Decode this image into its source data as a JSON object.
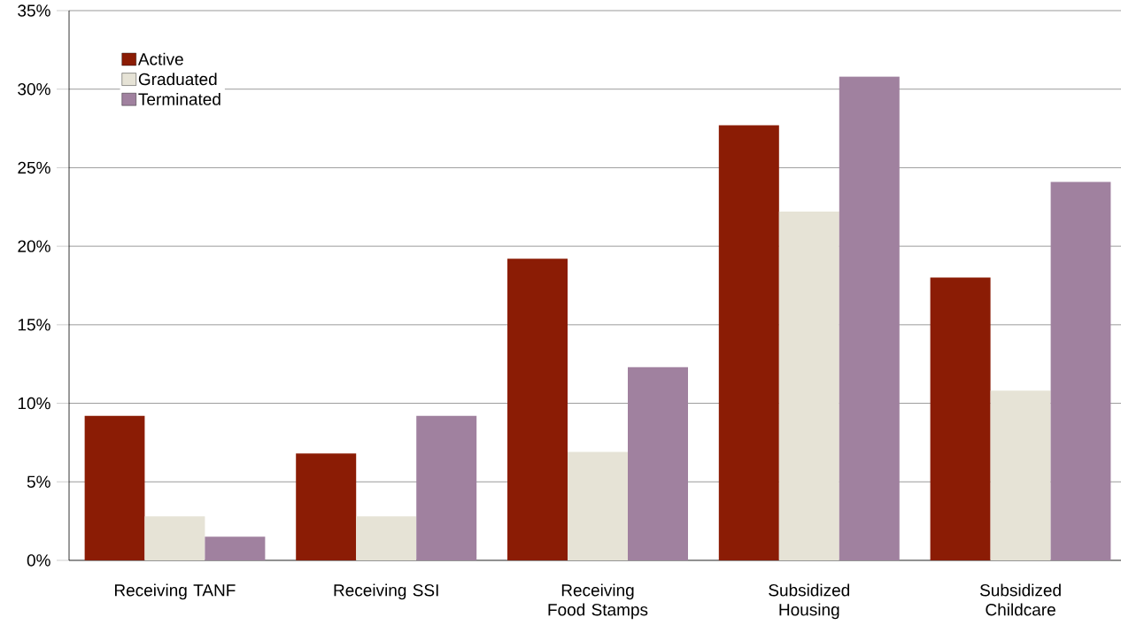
{
  "chart_data": {
    "type": "bar",
    "categories": [
      "Receiving TANF",
      "Receiving SSI",
      "Receiving Food Stamps",
      "Subsidized Housing",
      "Subsidized Childcare"
    ],
    "series": [
      {
        "name": "Active",
        "color": "#8b1c05",
        "values": [
          9.2,
          6.8,
          19.2,
          27.7,
          18.0
        ]
      },
      {
        "name": "Graduated",
        "color": "#e6e3d6",
        "values": [
          2.8,
          2.8,
          6.9,
          22.2,
          10.8
        ]
      },
      {
        "name": "Terminated",
        "color": "#a0819f",
        "values": [
          1.5,
          9.2,
          12.3,
          30.8,
          24.1
        ]
      }
    ],
    "ylim": [
      0,
      35
    ],
    "yticks": [
      {
        "value": 0,
        "label": "0%"
      },
      {
        "value": 5,
        "label": "5%"
      },
      {
        "value": 10,
        "label": "10%"
      },
      {
        "value": 15,
        "label": "15%"
      },
      {
        "value": 20,
        "label": "20%"
      },
      {
        "value": 25,
        "label": "25%"
      },
      {
        "value": 30,
        "label": "30%"
      },
      {
        "value": 35,
        "label": "35%"
      }
    ],
    "grid": "y",
    "legend": "top left"
  }
}
